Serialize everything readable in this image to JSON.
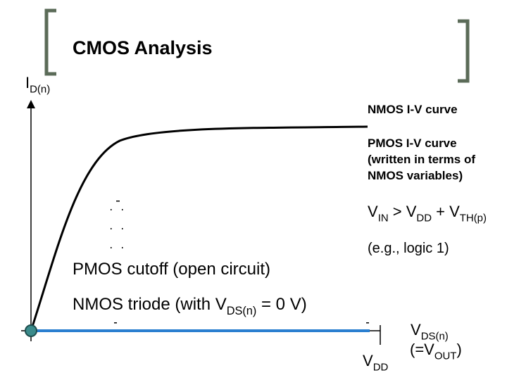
{
  "title": "CMOS Analysis",
  "y_axis_label": [
    {
      "t": "I"
    },
    {
      "t": "D(n)",
      "sub": true
    }
  ],
  "nmos_curve_label": [
    {
      "t": "NMOS I-V curve"
    }
  ],
  "pmos_curve_label": [
    [
      {
        "t": "PMOS I-V curve"
      }
    ],
    [
      {
        "t": "(written in terms of"
      }
    ],
    [
      {
        "t": "NMOS variables)"
      }
    ]
  ],
  "condition": [
    {
      "t": "V"
    },
    {
      "t": "IN",
      "sub": true
    },
    {
      "t": " > V"
    },
    {
      "t": "DD",
      "sub": true
    },
    {
      "t": " + V"
    },
    {
      "t": "TH(p)",
      "sub": true
    }
  ],
  "example": [
    {
      "t": "(e.g., logic 1)"
    }
  ],
  "pmos_state": [
    {
      "t": "PMOS cutoff (open circuit)"
    }
  ],
  "nmos_state": [
    {
      "t": "NMOS triode (with V"
    },
    {
      "t": "DS(n)",
      "sub": true
    },
    {
      "t": " = 0 V)"
    }
  ],
  "x_tick_label": [
    {
      "t": "V"
    },
    {
      "t": "DD",
      "sub": true
    }
  ],
  "x_axis_label": [
    [
      {
        "t": "V"
      },
      {
        "t": "DS(n)",
        "sub": true
      }
    ],
    [
      {
        "t": "(=V"
      },
      {
        "t": "OUT",
        "sub": true
      },
      {
        "t": ")"
      }
    ]
  ]
}
